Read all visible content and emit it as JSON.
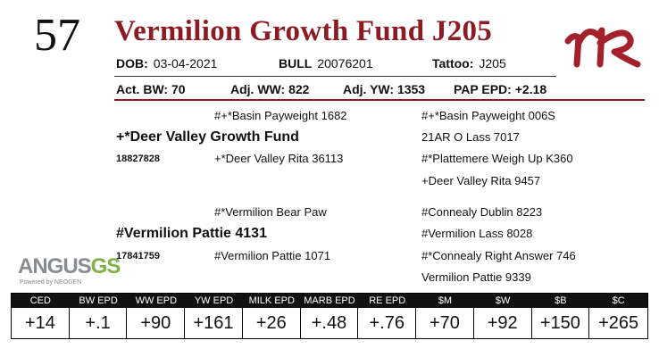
{
  "lot": "57",
  "name": "Vermilion Growth Fund J205",
  "details": [
    {
      "label": "DOB:",
      "value": "03-04-2021"
    },
    {
      "label": "BULL",
      "value": "20076201"
    },
    {
      "label": "Tattoo:",
      "value": "J205"
    }
  ],
  "performance": [
    {
      "label": "Act. BW:",
      "value": "70"
    },
    {
      "label": "Adj. WW:",
      "value": "822"
    },
    {
      "label": "Adj. YW:",
      "value": "1353"
    },
    {
      "label": "PAP EPD:",
      "value": "+2.18"
    }
  ],
  "pedigree": {
    "sire": "+*Deer Valley Growth Fund",
    "sire_reg": "18827828",
    "dam": "#Vermilion Pattie 4131",
    "dam_reg": "17841759",
    "sire_sire": "#+*Basin Payweight 1682",
    "sire_dam": "+*Deer Valley Rita 36113",
    "dam_sire": "#*Vermilion Bear Paw",
    "dam_dam": "#Vermilion Pattie 1071",
    "great_grandparents": [
      "#+*Basin Payweight 006S",
      "21AR O Lass 7017",
      "#*Plattemere Weigh Up K360",
      "+Deer Valley Rita 9457",
      "#Connealy Dublin 8223",
      "#Vermilion Lass 8028",
      "#*Connealy Right Answer 746",
      "Vermilion Pattie 9339"
    ]
  },
  "logo": {
    "brand": "ANGUS",
    "suffix": "GS",
    "tagline": "Powered by NEOGEN"
  },
  "epd": {
    "headers": [
      "CED",
      "BW EPD",
      "WW EPD",
      "YW EPD",
      "MILK EPD",
      "MARB EPD",
      "RE EPD",
      "$M",
      "$W",
      "$B",
      "$C"
    ],
    "values": [
      "+14",
      "+.1",
      "+90",
      "+161",
      "+26",
      "+.48",
      "+.76",
      "+70",
      "+92",
      "+150",
      "+265"
    ]
  }
}
